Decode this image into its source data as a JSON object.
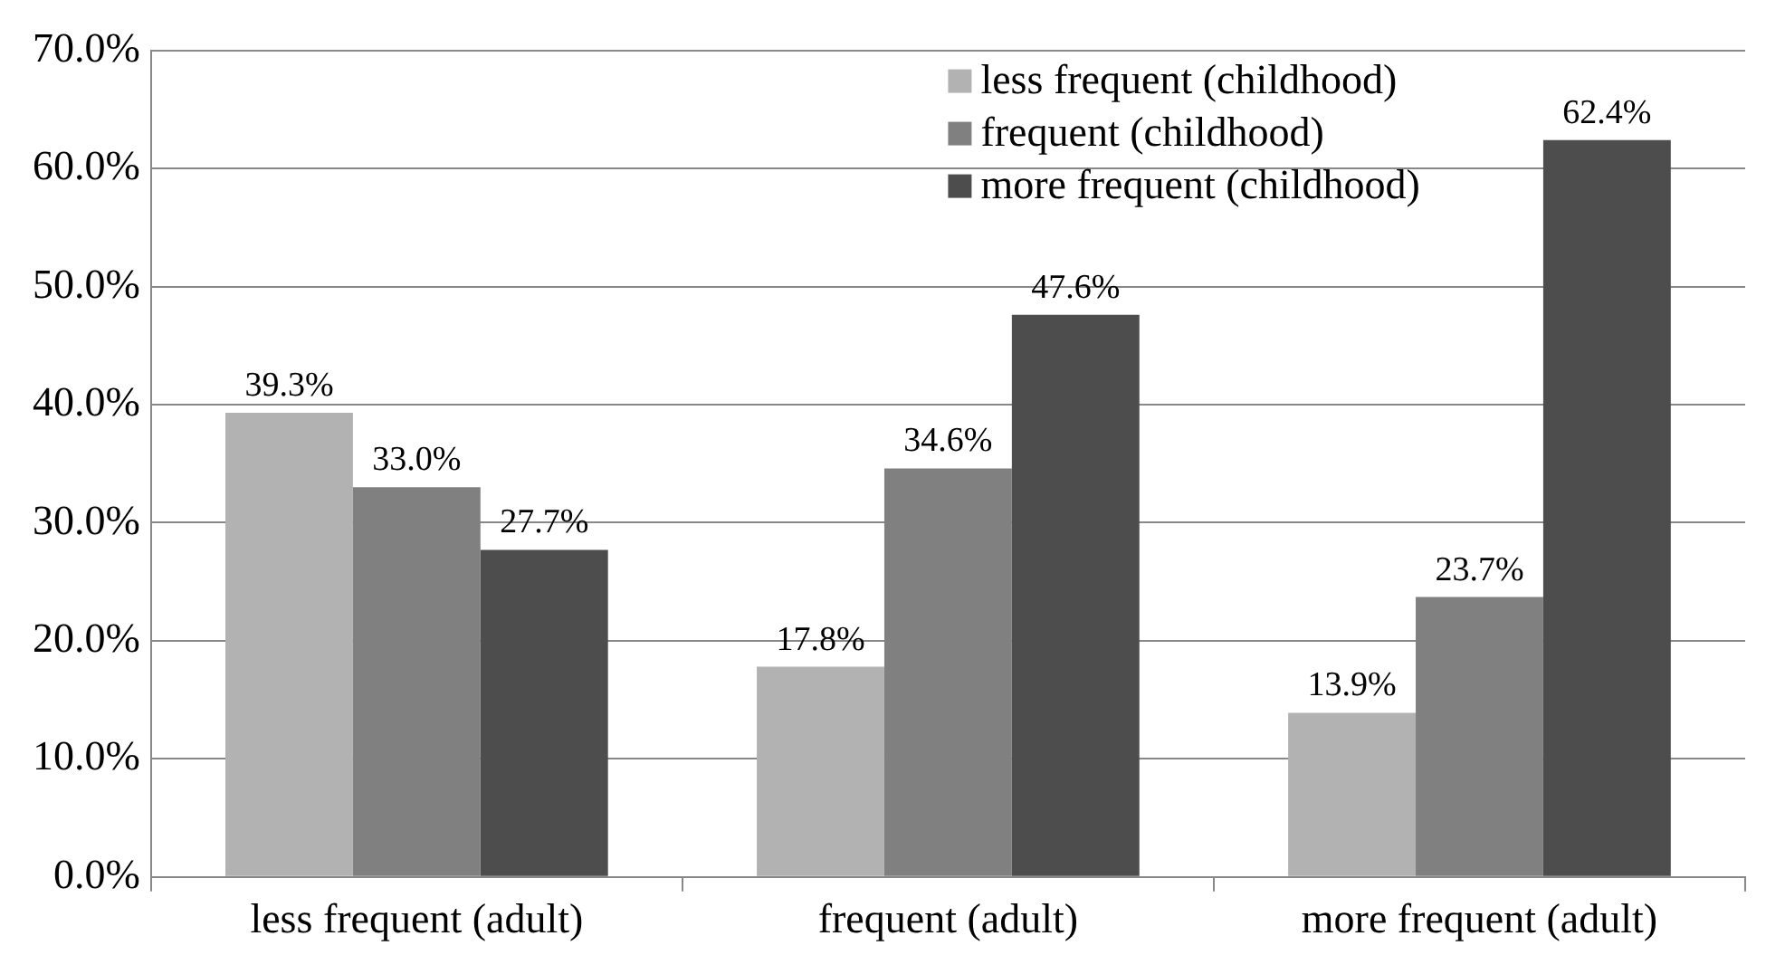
{
  "chart_data": {
    "type": "bar",
    "categories": [
      "less frequent (adult)",
      "frequent (adult)",
      "more frequent (adult)"
    ],
    "series": [
      {
        "name": "less frequent (childhood)",
        "color": "#b2b2b2",
        "values": [
          39.3,
          17.8,
          13.9
        ],
        "value_labels": [
          "39.3%",
          "17.8%",
          "13.9%"
        ]
      },
      {
        "name": "frequent (childhood)",
        "color": "#808080",
        "values": [
          33.0,
          34.6,
          23.7
        ],
        "value_labels": [
          "33.0%",
          "34.6%",
          "23.7%"
        ]
      },
      {
        "name": "more frequent (childhood)",
        "color": "#4d4d4d",
        "values": [
          27.7,
          47.6,
          62.4
        ],
        "value_labels": [
          "27.7%",
          "47.6%",
          "62.4%"
        ]
      }
    ],
    "ylim": [
      0,
      70
    ],
    "yticks": [
      {
        "value": 0,
        "label": "0.0%"
      },
      {
        "value": 10,
        "label": "10.0%"
      },
      {
        "value": 20,
        "label": "20.0%"
      },
      {
        "value": 30,
        "label": "30.0%"
      },
      {
        "value": 40,
        "label": "40.0%"
      },
      {
        "value": 50,
        "label": "50.0%"
      },
      {
        "value": 60,
        "label": "60.0%"
      },
      {
        "value": 70,
        "label": "70.0%"
      }
    ],
    "grid": "y",
    "legend": "top right"
  }
}
